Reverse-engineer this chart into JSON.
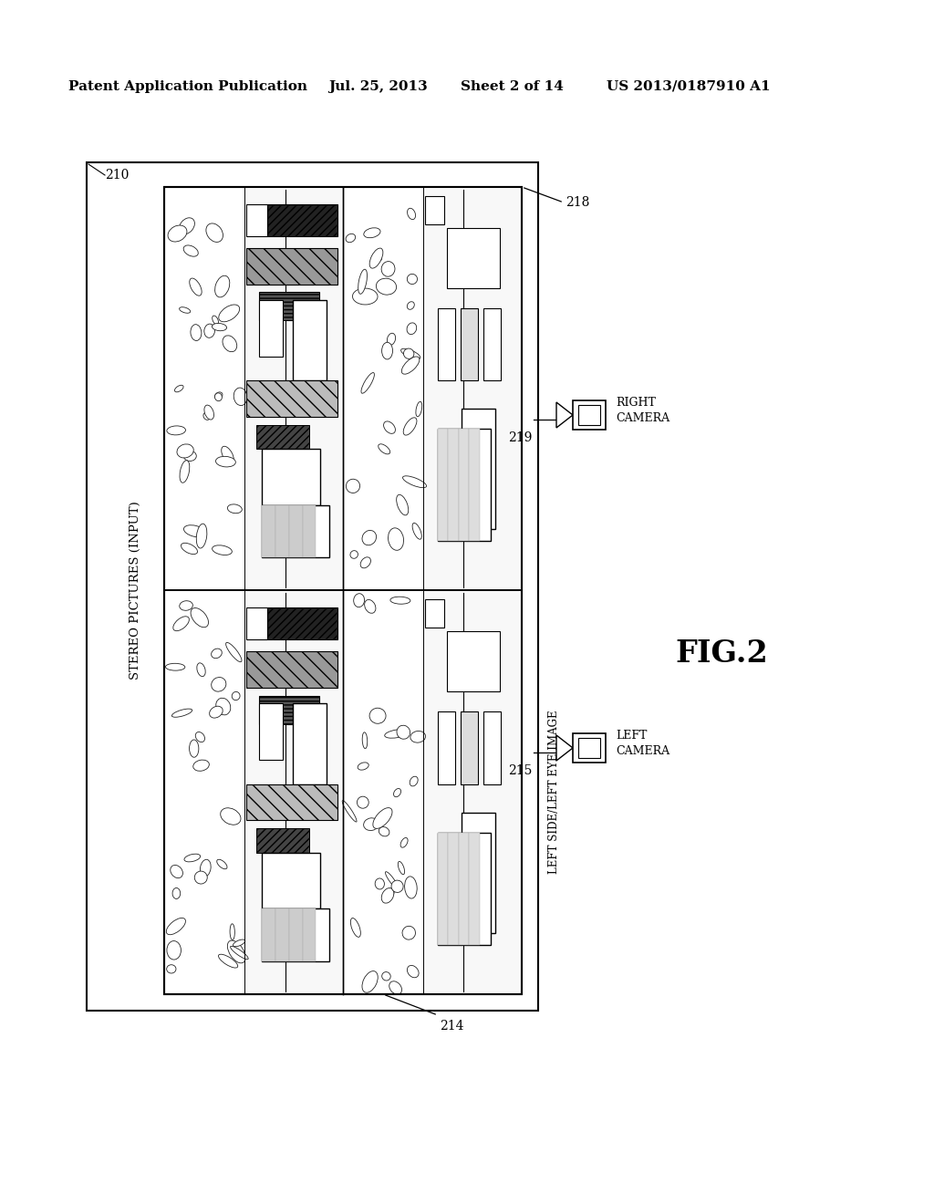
{
  "header_text": "Patent Application Publication",
  "header_date": "Jul. 25, 2013",
  "header_sheet": "Sheet 2 of 14",
  "header_patent": "US 2013/0187910 A1",
  "fig_label": "FIG.2",
  "label_210": "210",
  "label_214": "214",
  "label_215": "215",
  "label_218": "218",
  "label_219": "219",
  "label_stereo": "STEREO PICTURES (INPUT)",
  "label_right_camera": "RIGHT\nCAMERA",
  "label_left_camera": "LEFT\nCAMERA",
  "label_left_side": "LEFT SIDE/LEFT EYE IMAGE",
  "bg_color": "#ffffff"
}
